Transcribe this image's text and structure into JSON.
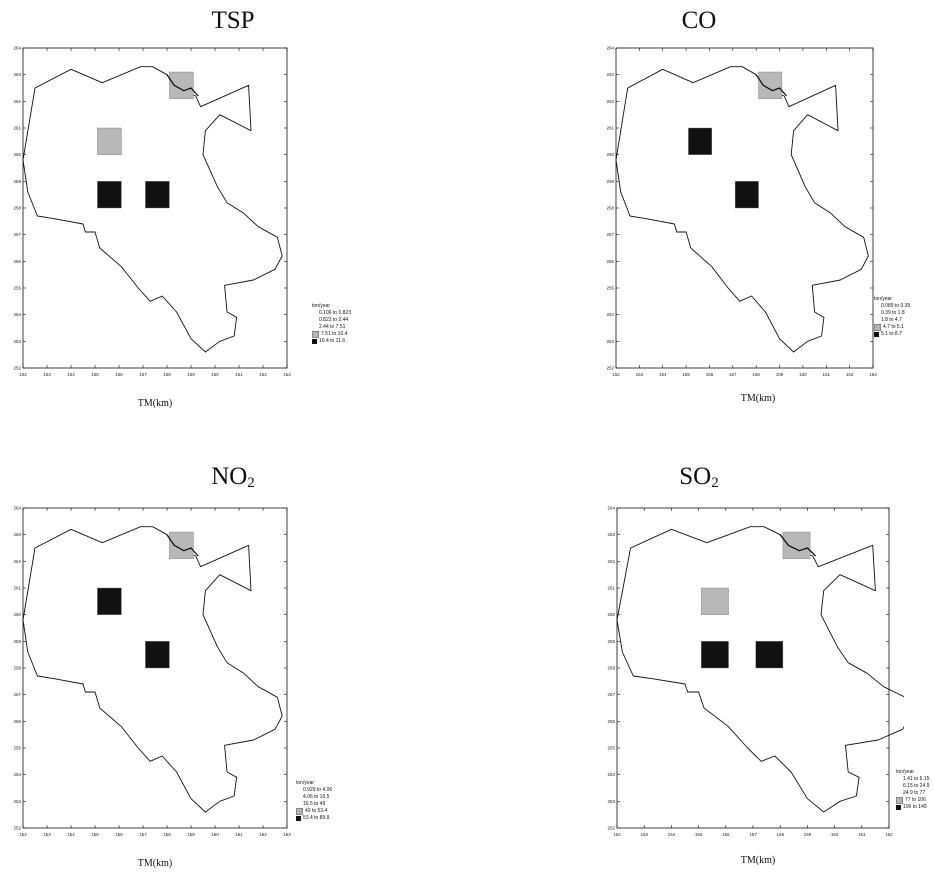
{
  "panels": {
    "tsp": {
      "title_main": "TSP",
      "title_sub": "",
      "x_label": "TM(km)",
      "x_ticks": [
        "152",
        "153",
        "154",
        "155",
        "156",
        "157",
        "158",
        "159",
        "160",
        "161",
        "162",
        "163"
      ],
      "y_ticks": [
        "252",
        "253",
        "254",
        "255",
        "256",
        "257",
        "258",
        "259",
        "260",
        "261",
        "262",
        "263",
        "264"
      ],
      "legend": {
        "unit": "ton/year",
        "items": [
          {
            "label": "0.106 to 0.823",
            "shade": "none"
          },
          {
            "label": "0.823 to 2.44",
            "shade": "none"
          },
          {
            "label": "2.44 to 7.51",
            "shade": "none"
          },
          {
            "label": "7.51 to 10.4",
            "shade": "light"
          },
          {
            "label": "10.4 to 11.6",
            "shade": "dark"
          }
        ]
      },
      "cells": [
        {
          "x": 158.6,
          "y": 262.6,
          "shade": "light"
        },
        {
          "x": 155.6,
          "y": 260.5,
          "shade": "light"
        },
        {
          "x": 155.6,
          "y": 258.5,
          "shade": "dark"
        },
        {
          "x": 157.6,
          "y": 258.5,
          "shade": "dark"
        }
      ]
    },
    "co": {
      "title_main": "CO",
      "title_sub": "",
      "x_label": "TM(km)",
      "x_ticks": [
        "152",
        "153",
        "154",
        "155",
        "156",
        "157",
        "158",
        "159",
        "160",
        "161",
        "162",
        "163"
      ],
      "y_ticks": [
        "252",
        "253",
        "254",
        "255",
        "256",
        "257",
        "258",
        "259",
        "260",
        "261",
        "262",
        "263",
        "264"
      ],
      "legend": {
        "unit": "ton/year",
        "items": [
          {
            "label": "0.089 to 0.39",
            "shade": "none"
          },
          {
            "label": "0.39 to 1.8",
            "shade": "none"
          },
          {
            "label": "1.8 to 4.7",
            "shade": "none"
          },
          {
            "label": "4.7 to 5.1",
            "shade": "light"
          },
          {
            "label": "5.1 to 8.7",
            "shade": "dark"
          }
        ]
      },
      "cells": [
        {
          "x": 158.6,
          "y": 262.6,
          "shade": "light"
        },
        {
          "x": 155.6,
          "y": 260.5,
          "shade": "dark"
        },
        {
          "x": 157.6,
          "y": 258.5,
          "shade": "dark"
        }
      ]
    },
    "no2": {
      "title_main": "NO",
      "title_sub": "2",
      "x_label": "TM(km)",
      "x_ticks": [
        "152",
        "153",
        "154",
        "155",
        "156",
        "157",
        "158",
        "159",
        "160",
        "161",
        "162",
        "163"
      ],
      "y_ticks": [
        "252",
        "253",
        "254",
        "255",
        "256",
        "257",
        "258",
        "259",
        "260",
        "261",
        "262",
        "263",
        "264"
      ],
      "legend": {
        "unit": "ton/year",
        "items": [
          {
            "label": "0.929 to 4.06",
            "shade": "none"
          },
          {
            "label": "4.06 to 16.5",
            "shade": "none"
          },
          {
            "label": "16.5 to 49",
            "shade": "none"
          },
          {
            "label": "49 to 53.4",
            "shade": "light"
          },
          {
            "label": "53.4 to 89.9",
            "shade": "dark"
          }
        ]
      },
      "cells": [
        {
          "x": 158.6,
          "y": 262.6,
          "shade": "light"
        },
        {
          "x": 155.6,
          "y": 260.5,
          "shade": "dark"
        },
        {
          "x": 157.6,
          "y": 258.5,
          "shade": "dark"
        }
      ]
    },
    "so2": {
      "title_main": "SO",
      "title_sub": "2",
      "x_label": "TM(km)",
      "x_ticks": [
        "152",
        "153",
        "154",
        "155",
        "156",
        "157",
        "158",
        "159",
        "160",
        "161",
        "162"
      ],
      "y_ticks": [
        "252",
        "253",
        "254",
        "255",
        "256",
        "257",
        "258",
        "259",
        "260",
        "261",
        "262",
        "263",
        "264"
      ],
      "legend": {
        "unit": "ton/year",
        "items": [
          {
            "label": "1.41 to 6.15",
            "shade": "none"
          },
          {
            "label": "6.15 to 24.9",
            "shade": "none"
          },
          {
            "label": "24.9 to 77",
            "shade": "none"
          },
          {
            "label": "77 to 106",
            "shade": "light"
          },
          {
            "label": "106 to 149",
            "shade": "dark"
          }
        ]
      },
      "cells": [
        {
          "x": 158.6,
          "y": 262.6,
          "shade": "light"
        },
        {
          "x": 155.6,
          "y": 260.5,
          "shade": "light"
        },
        {
          "x": 155.6,
          "y": 258.5,
          "shade": "dark"
        },
        {
          "x": 157.6,
          "y": 258.5,
          "shade": "dark"
        }
      ]
    }
  },
  "colors": {
    "outline": "#111111",
    "light_cell": "#b8b8b8",
    "dark_cell": "#111111"
  },
  "boundary_km": [
    [
      152.0,
      259.8
    ],
    [
      152.5,
      262.5
    ],
    [
      154.0,
      263.2
    ],
    [
      155.3,
      262.7
    ],
    [
      156.9,
      263.3
    ],
    [
      157.4,
      263.3
    ],
    [
      158.0,
      263.0
    ],
    [
      158.4,
      262.5
    ],
    [
      158.9,
      262.3
    ],
    [
      159.2,
      262.2
    ],
    [
      159.4,
      261.8
    ],
    [
      161.4,
      262.6
    ],
    [
      161.5,
      260.9
    ],
    [
      160.2,
      261.5
    ],
    [
      159.6,
      260.9
    ],
    [
      159.5,
      260.0
    ],
    [
      160.1,
      258.8
    ],
    [
      160.5,
      258.2
    ],
    [
      161.2,
      257.8
    ],
    [
      161.8,
      257.3
    ],
    [
      162.6,
      256.9
    ],
    [
      162.8,
      256.2
    ],
    [
      162.5,
      255.7
    ],
    [
      161.6,
      255.3
    ],
    [
      160.4,
      255.1
    ],
    [
      160.5,
      254.1
    ],
    [
      160.9,
      253.9
    ],
    [
      160.8,
      253.2
    ],
    [
      160.2,
      253.0
    ],
    [
      159.6,
      252.6
    ],
    [
      159.0,
      253.1
    ],
    [
      158.4,
      254.1
    ],
    [
      157.8,
      254.7
    ],
    [
      157.3,
      254.5
    ],
    [
      156.8,
      255.0
    ],
    [
      156.1,
      255.8
    ],
    [
      155.2,
      256.5
    ],
    [
      155.0,
      257.1
    ],
    [
      154.6,
      257.1
    ],
    [
      154.5,
      257.4
    ],
    [
      153.3,
      257.6
    ],
    [
      152.6,
      257.7
    ],
    [
      152.2,
      258.6
    ],
    [
      152.0,
      259.8
    ]
  ],
  "river_km": [
    [
      158.0,
      263.0
    ],
    [
      158.3,
      262.6
    ],
    [
      158.7,
      262.4
    ],
    [
      159.0,
      262.5
    ],
    [
      159.3,
      262.2
    ]
  ]
}
